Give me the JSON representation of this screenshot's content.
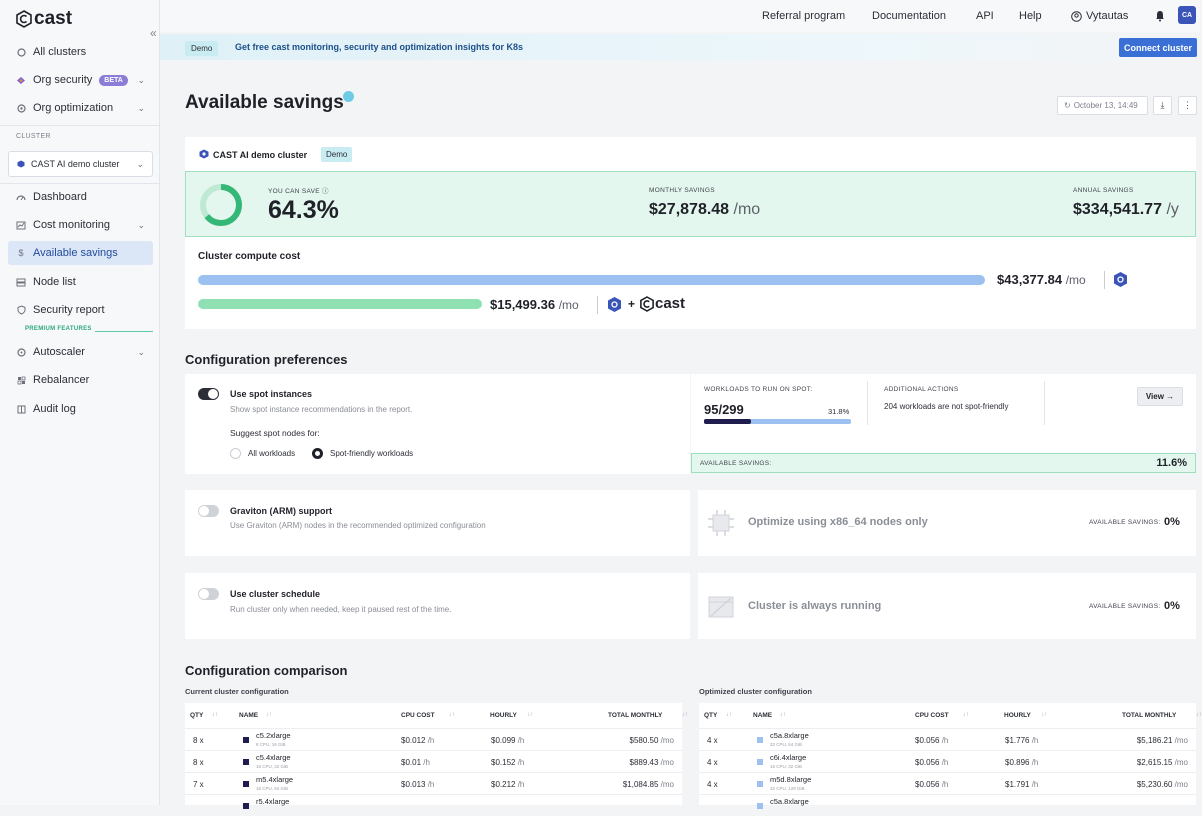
{
  "brand": {
    "logo_text": "cast"
  },
  "sidebar": {
    "top_items": [
      {
        "label": "All clusters",
        "icon": "circle-icon"
      },
      {
        "label": "Org security",
        "icon": "shield-dot-icon",
        "badge": "BETA"
      },
      {
        "label": "Org optimization",
        "icon": "target-icon"
      }
    ],
    "cluster_section": "CLUSTER",
    "cluster_select": "CAST AI demo cluster",
    "cluster_items": [
      {
        "label": "Dashboard",
        "icon": "gauge-icon"
      },
      {
        "label": "Cost monitoring",
        "icon": "chart-icon"
      },
      {
        "label": "Available savings",
        "icon": "dollar-icon",
        "active": true
      },
      {
        "label": "Node list",
        "icon": "server-icon"
      },
      {
        "label": "Security report",
        "icon": "shield-check-icon"
      }
    ],
    "premium_label": "PREMIUM FEATURES",
    "premium_items": [
      {
        "label": "Autoscaler",
        "icon": "autoscaler-icon"
      },
      {
        "label": "Rebalancer",
        "icon": "rebalancer-icon"
      },
      {
        "label": "Audit log",
        "icon": "book-icon"
      }
    ]
  },
  "topbar": {
    "links": [
      "Referral program",
      "Documentation",
      "API",
      "Help"
    ],
    "user": "Vytautas",
    "avatar": "CA"
  },
  "banner": {
    "tag": "Demo",
    "text": "Get free cast monitoring, security and optimization insights for K8s",
    "button": "Connect cluster"
  },
  "page": {
    "title": "Available savings",
    "refresh_time": "October 13, 14:49"
  },
  "cluster": {
    "name": "CAST AI demo cluster",
    "tag": "Demo"
  },
  "savings": {
    "you_can_save_label": "YOU CAN SAVE",
    "you_can_save": "64.3%",
    "you_can_save_fraction": 0.643,
    "monthly_label": "MONTHLY SAVINGS",
    "monthly": "$27,878.48",
    "monthly_unit": "/mo",
    "annual_label": "ANNUAL SAVINGS",
    "annual": "$334,541.77",
    "annual_unit": "/y"
  },
  "compute_cost": {
    "title": "Cluster compute cost",
    "current": "$43,377.84",
    "current_unit": "/mo",
    "optimized": "$15,499.36",
    "optimized_unit": "/mo",
    "plus": "+",
    "cast_label": "cast"
  },
  "config_prefs": {
    "title": "Configuration preferences",
    "spot": {
      "title": "Use spot instances",
      "desc": "Show spot instance recommendations in the report.",
      "suggest_label": "Suggest spot nodes for:",
      "options": [
        "All workloads",
        "Spot-friendly workloads"
      ],
      "selected": 1,
      "enabled": true,
      "workloads_label": "WORKLOADS TO RUN ON SPOT:",
      "workloads_value": "95/299",
      "workloads_pct": "31.8%",
      "workloads_fraction": 0.318,
      "actions_label": "ADDITIONAL ACTIONS",
      "actions_text": "204 workloads are not spot-friendly",
      "view": "View",
      "available_label": "AVAILABLE SAVINGS:",
      "available_value": "11.6%"
    },
    "graviton": {
      "title": "Graviton (ARM) support",
      "desc": "Use Graviton (ARM) nodes in the recommended optimized configuration",
      "enabled": false,
      "right_title": "Optimize using x86_64 nodes only",
      "available_label": "AVAILABLE SAVINGS:",
      "available_value": "0%"
    },
    "schedule": {
      "title": "Use cluster schedule",
      "desc": "Run cluster only when needed, keep it paused rest of the time.",
      "enabled": false,
      "right_title": "Cluster is always running",
      "available_label": "AVAILABLE SAVINGS:",
      "available_value": "0%"
    }
  },
  "comparison": {
    "title": "Configuration comparison",
    "current_label": "Current cluster configuration",
    "optimized_label": "Optimized cluster configuration",
    "headers": [
      "QTY",
      "NAME",
      "CPU COST",
      "HOURLY",
      "TOTAL MONTHLY"
    ],
    "current_rows": [
      {
        "qty": "8 x",
        "name": "c5.2xlarge",
        "spec": "8 CPU, 16 GiB",
        "cpu": "$0.012",
        "cpu_u": "/h",
        "hourly": "$0.099",
        "hourly_u": "/h",
        "monthly": "$580.50",
        "monthly_u": "/mo"
      },
      {
        "qty": "8 x",
        "name": "c5.4xlarge",
        "spec": "16 CPU, 32 GiB",
        "cpu": "$0.01",
        "cpu_u": "/h",
        "hourly": "$0.152",
        "hourly_u": "/h",
        "monthly": "$889.43",
        "monthly_u": "/mo"
      },
      {
        "qty": "7 x",
        "name": "m5.4xlarge",
        "spec": "16 CPU, 64 GiB",
        "cpu": "$0.013",
        "cpu_u": "/h",
        "hourly": "$0.212",
        "hourly_u": "/h",
        "monthly": "$1,084.85",
        "monthly_u": "/mo"
      },
      {
        "qty": "",
        "name": "r5.4xlarge",
        "spec": "",
        "cpu": "",
        "cpu_u": "",
        "hourly": "",
        "hourly_u": "",
        "monthly": "",
        "monthly_u": ""
      }
    ],
    "optimized_rows": [
      {
        "qty": "4 x",
        "name": "c5a.8xlarge",
        "spec": "32 CPU, 64 GiB",
        "cpu": "$0.056",
        "cpu_u": "/h",
        "hourly": "$1.776",
        "hourly_u": "/h",
        "monthly": "$5,186.21",
        "monthly_u": "/mo"
      },
      {
        "qty": "4 x",
        "name": "c6i.4xlarge",
        "spec": "16 CPU, 32 GiB",
        "cpu": "$0.056",
        "cpu_u": "/h",
        "hourly": "$0.896",
        "hourly_u": "/h",
        "monthly": "$2,615.15",
        "monthly_u": "/mo"
      },
      {
        "qty": "4 x",
        "name": "m5d.8xlarge",
        "spec": "32 CPU, 128 GiB",
        "cpu": "$0.056",
        "cpu_u": "/h",
        "hourly": "$1.791",
        "hourly_u": "/h",
        "monthly": "$5,230.60",
        "monthly_u": "/mo"
      },
      {
        "qty": "",
        "name": "c5a.8xlarge",
        "spec": "",
        "cpu": "",
        "cpu_u": "",
        "hourly": "",
        "hourly_u": "",
        "monthly": "",
        "monthly_u": ""
      }
    ]
  },
  "colors": {
    "accent": "#3a6fd6",
    "active_bg": "#dbe6f7",
    "savings_bg": "#e4f7ee",
    "green": "#2ea87a"
  }
}
